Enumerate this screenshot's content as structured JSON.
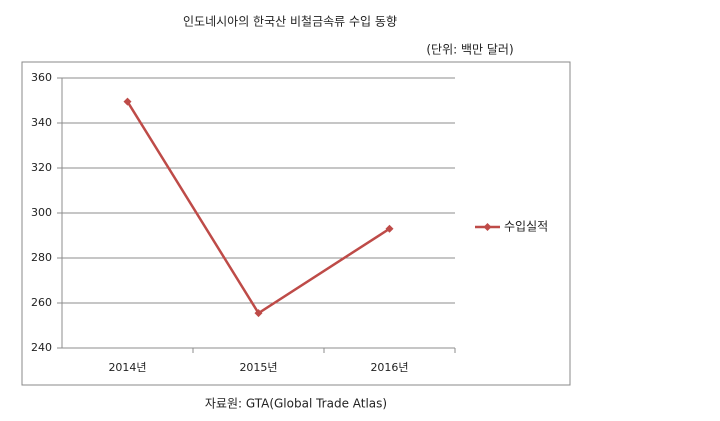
{
  "chart_data": {
    "type": "line",
    "title": "인도네시아의 한국산 비철금속류 수입 동향",
    "subtitle": "(단위: 백만 달러)",
    "source": "자료원: GTA(Global Trade Atlas)",
    "categories": [
      "2014년",
      "2015년",
      "2016년"
    ],
    "series": [
      {
        "name": "수입실적",
        "color": "#be4b48",
        "values": [
          349.5,
          255.5,
          293
        ]
      }
    ],
    "ylim": [
      240,
      360
    ],
    "yticks": [
      240,
      260,
      280,
      300,
      320,
      340,
      360
    ],
    "grid": true,
    "legend": "right"
  }
}
